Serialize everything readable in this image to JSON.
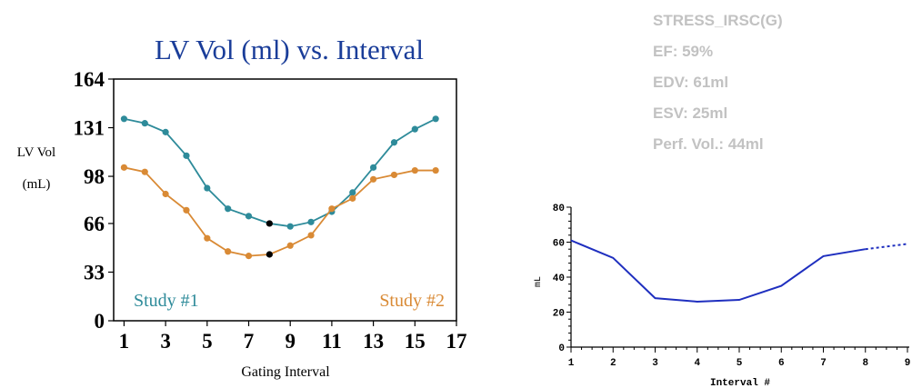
{
  "stats": {
    "protocol": "STRESS_IRSC(G)",
    "ef": "EF: 59%",
    "edv": "EDV: 61ml",
    "esv": "ESV: 25ml",
    "perf_vol": "Perf. Vol.: 44ml"
  },
  "chart_data": [
    {
      "type": "line",
      "title": "LV Vol (ml) vs. Interval",
      "xlabel": "Gating Interval",
      "ylabel": "LV Vol (mL)",
      "ylabel_lines": [
        "LV Vol",
        "(mL)"
      ],
      "xlim": [
        0.5,
        17
      ],
      "ylim": [
        0,
        164
      ],
      "xticks": [
        "1",
        "3",
        "5",
        "7",
        "9",
        "11",
        "13",
        "15",
        "17"
      ],
      "yticks": [
        "0",
        "33",
        "66",
        "98",
        "131",
        "164"
      ],
      "grid": false,
      "series": [
        {
          "name": "Study #1",
          "color": "#2e8b9a",
          "x": [
            1,
            2,
            3,
            4,
            5,
            6,
            7,
            8,
            9,
            10,
            11,
            12,
            13,
            14,
            15,
            16
          ],
          "values": [
            137,
            134,
            128,
            112,
            90,
            76,
            71,
            66,
            64,
            67,
            74,
            87,
            104,
            121,
            130,
            137
          ],
          "highlight_x": 8
        },
        {
          "name": "Study #2",
          "color": "#d98a35",
          "x": [
            1,
            2,
            3,
            4,
            5,
            6,
            7,
            8,
            9,
            10,
            11,
            12,
            13,
            14,
            15,
            16
          ],
          "values": [
            104,
            101,
            86,
            75,
            56,
            47,
            44,
            45,
            51,
            58,
            76,
            83,
            96,
            99,
            102,
            102
          ],
          "highlight_x": 8
        }
      ]
    },
    {
      "type": "line",
      "xlabel": "Interval #",
      "ylabel": "mL",
      "xlim": [
        1,
        9
      ],
      "ylim": [
        0,
        80
      ],
      "xticks": [
        "1",
        "2",
        "3",
        "4",
        "5",
        "6",
        "7",
        "8",
        "9"
      ],
      "yticks": [
        "0",
        "20",
        "40",
        "60",
        "80"
      ],
      "grid": false,
      "series": [
        {
          "color": "#1f2fbf",
          "x": [
            1,
            2,
            3,
            4,
            5,
            6,
            7,
            8,
            9
          ],
          "values": [
            61,
            51,
            28,
            26,
            27,
            35,
            52,
            56,
            59
          ],
          "dashed_from_x": 8
        }
      ]
    }
  ]
}
